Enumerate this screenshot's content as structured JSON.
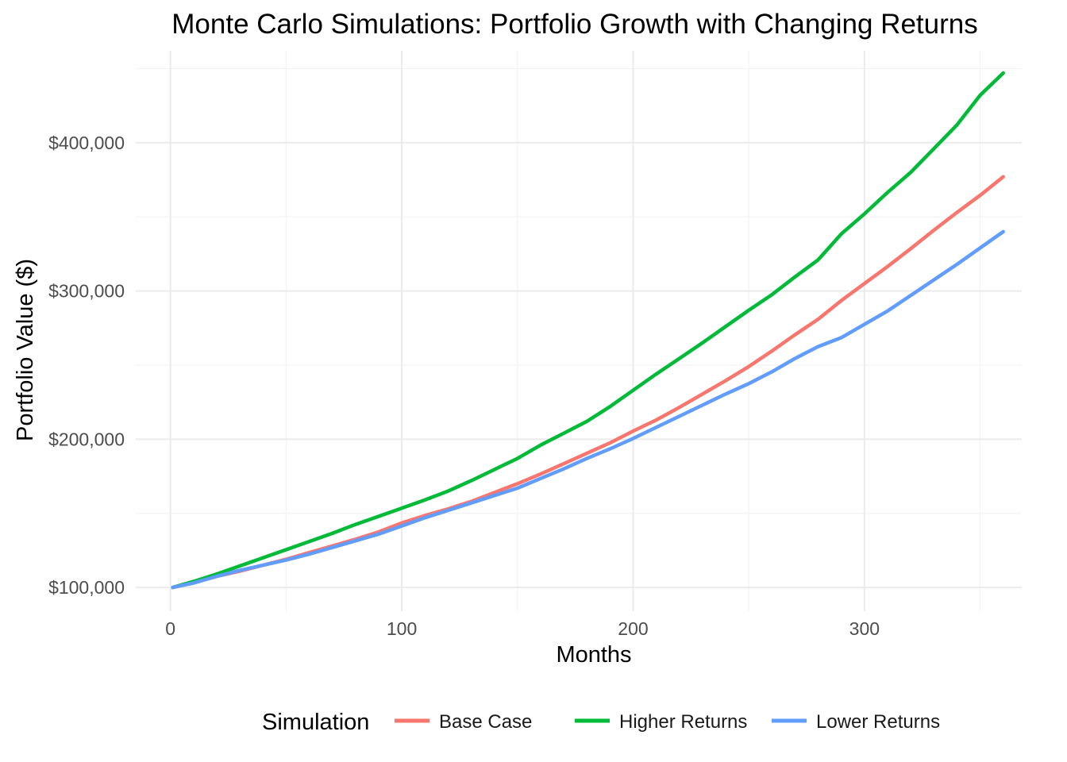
{
  "chart_data": {
    "type": "line",
    "title": "Monte Carlo Simulations: Portfolio Growth with Changing Returns",
    "xlabel": "Months",
    "ylabel": "Portfolio Value ($)",
    "xlim": [
      -15,
      368
    ],
    "ylim": [
      84000,
      462000
    ],
    "x_ticks": [
      0,
      100,
      200,
      300
    ],
    "x_tick_labels": [
      "0",
      "100",
      "200",
      "300"
    ],
    "x_minor_ticks": [
      50,
      150,
      250,
      350
    ],
    "y_ticks": [
      100000,
      200000,
      300000,
      400000
    ],
    "y_tick_labels": [
      "$100,000",
      "$200,000",
      "$300,000",
      "$400,000"
    ],
    "y_minor_ticks": [
      150000,
      250000,
      350000,
      450000
    ],
    "grid": true,
    "legend": {
      "title": "Simulation",
      "position": "bottom"
    },
    "series": [
      {
        "name": "Base Case",
        "color": "#F8766D",
        "x": [
          1,
          10,
          20,
          30,
          40,
          50,
          60,
          70,
          80,
          90,
          100,
          110,
          120,
          130,
          140,
          150,
          160,
          170,
          180,
          190,
          200,
          210,
          220,
          230,
          240,
          250,
          260,
          270,
          280,
          290,
          300,
          310,
          320,
          330,
          340,
          350,
          360
        ],
        "values": [
          100000,
          103500,
          107500,
          111000,
          115000,
          119000,
          123500,
          128000,
          132500,
          137500,
          143500,
          148500,
          153000,
          158000,
          164000,
          170000,
          176500,
          183500,
          190500,
          197500,
          205500,
          213000,
          221500,
          230500,
          239500,
          249000,
          259500,
          270500,
          281000,
          293500,
          305000,
          316500,
          328500,
          341000,
          353000,
          364500,
          377000
        ]
      },
      {
        "name": "Higher Returns",
        "color": "#00BA38",
        "x": [
          1,
          10,
          20,
          30,
          40,
          50,
          60,
          70,
          80,
          90,
          100,
          110,
          120,
          130,
          140,
          150,
          160,
          170,
          180,
          190,
          200,
          210,
          220,
          230,
          240,
          250,
          260,
          270,
          280,
          290,
          300,
          310,
          320,
          330,
          340,
          350,
          360
        ],
        "values": [
          100000,
          104000,
          109000,
          114500,
          120000,
          125500,
          131000,
          136500,
          142500,
          148000,
          153500,
          159000,
          165000,
          172000,
          179500,
          187000,
          196000,
          204000,
          212000,
          222000,
          233000,
          244000,
          254500,
          265000,
          276000,
          287000,
          297500,
          309500,
          321000,
          338500,
          352000,
          366500,
          380000,
          396000,
          412000,
          432000,
          447000
        ]
      },
      {
        "name": "Lower Returns",
        "color": "#619CFF",
        "x": [
          1,
          10,
          20,
          30,
          40,
          50,
          60,
          70,
          80,
          90,
          100,
          110,
          120,
          130,
          140,
          150,
          160,
          170,
          180,
          190,
          200,
          210,
          220,
          230,
          240,
          250,
          260,
          270,
          280,
          290,
          300,
          310,
          320,
          330,
          340,
          350,
          360
        ],
        "values": [
          100000,
          103000,
          107500,
          111500,
          115000,
          118500,
          122500,
          127000,
          131500,
          136000,
          141500,
          147000,
          152000,
          157000,
          162000,
          167000,
          173500,
          180000,
          187000,
          193500,
          200500,
          208000,
          215500,
          223000,
          230500,
          237500,
          245500,
          254500,
          262500,
          268500,
          277500,
          286500,
          297000,
          307500,
          318000,
          329000,
          340000
        ]
      }
    ]
  }
}
